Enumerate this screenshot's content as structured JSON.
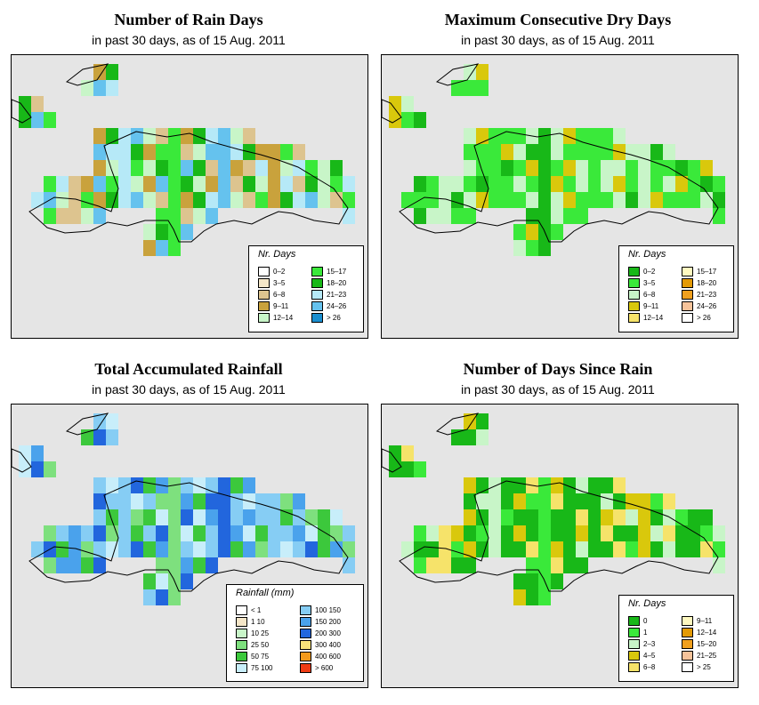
{
  "panels": [
    {
      "id": "rain-days",
      "title": "Number of Rain Days",
      "subtitle": "in past 30 days, as of  15 Aug. 2011",
      "legend": {
        "title": "Nr. Days",
        "items": [
          {
            "label": "0–2",
            "color": "#ffffff"
          },
          {
            "label": "3–5",
            "color": "#f3e6c8"
          },
          {
            "label": "6–8",
            "color": "#ddc48f"
          },
          {
            "label": "9–11",
            "color": "#c9a23c"
          },
          {
            "label": "12–14",
            "color": "#c8f5c8"
          },
          {
            "label": "15–17",
            "color": "#3ae93a"
          },
          {
            "label": "18–20",
            "color": "#18b818"
          },
          {
            "label": "21–23",
            "color": "#b6e9f7"
          },
          {
            "label": "24–26",
            "color": "#65c2ee"
          },
          {
            "label": "> 26",
            "color": "#1b8fd0"
          }
        ]
      }
    },
    {
      "id": "dry-days",
      "title": "Maximum Consecutive Dry Days",
      "subtitle": "in past 30 days, as of  15 Aug. 2011",
      "legend": {
        "title": "Nr. Days",
        "items": [
          {
            "label": "0–2",
            "color": "#18b818"
          },
          {
            "label": "3–5",
            "color": "#3ae93a"
          },
          {
            "label": "6–8",
            "color": "#c8f5c8"
          },
          {
            "label": "9–11",
            "color": "#d9c80c"
          },
          {
            "label": "12–14",
            "color": "#f6e36a"
          },
          {
            "label": "15–17",
            "color": "#fff9c0"
          },
          {
            "label": "18–20",
            "color": "#e39a06"
          },
          {
            "label": "21–23",
            "color": "#f0a01e"
          },
          {
            "label": "24–26",
            "color": "#f6c39a"
          },
          {
            "label": "> 26",
            "color": "#ffffff"
          }
        ]
      }
    },
    {
      "id": "rainfall",
      "title": "Total Accumulated Rainfall",
      "subtitle": "in past 30 days, as of  15 Aug. 2011",
      "legend": {
        "title": "Rainfall (mm)",
        "items": [
          {
            "label": "< 1",
            "color": "#ffffff"
          },
          {
            "label": "1    10",
            "color": "#f5e6c8"
          },
          {
            "label": "10    25",
            "color": "#c8f5c8"
          },
          {
            "label": "25    50",
            "color": "#7ee07e"
          },
          {
            "label": "50    75",
            "color": "#3cc83c"
          },
          {
            "label": "75   100",
            "color": "#c8eefa"
          },
          {
            "label": "100  150",
            "color": "#86cdf4"
          },
          {
            "label": "150  200",
            "color": "#4aa2ec"
          },
          {
            "label": "200  300",
            "color": "#2266dd"
          },
          {
            "label": "300  400",
            "color": "#f7e27a"
          },
          {
            "label": "400  600",
            "color": "#f39a1c"
          },
          {
            "label": "> 600",
            "color": "#f03c14"
          }
        ]
      }
    },
    {
      "id": "days-since-rain",
      "title": "Number of Days Since Rain",
      "subtitle": "in past 30 days, as of  15 Aug. 2011",
      "legend": {
        "title": "Nr. Days",
        "items": [
          {
            "label": "0",
            "color": "#18b818"
          },
          {
            "label": "1",
            "color": "#3ae93a"
          },
          {
            "label": "2–3",
            "color": "#c8f5c8"
          },
          {
            "label": "4–5",
            "color": "#d9c80c"
          },
          {
            "label": "6–8",
            "color": "#f6e36a"
          },
          {
            "label": "9–11",
            "color": "#fff9c0"
          },
          {
            "label": "12–14",
            "color": "#e39a06"
          },
          {
            "label": "15–20",
            "color": "#f0a01e"
          },
          {
            "label": "21–25",
            "color": "#f6c39a"
          },
          {
            "label": "> 25",
            "color": "#ffffff"
          }
        ]
      }
    }
  ]
}
